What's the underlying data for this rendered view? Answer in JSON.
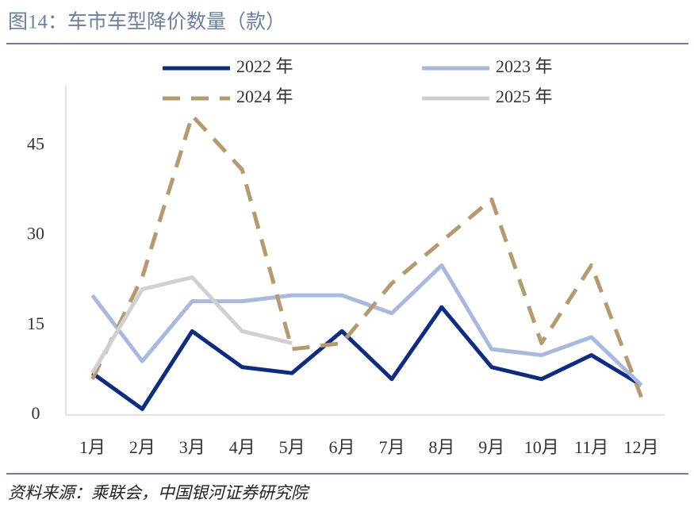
{
  "chart_data": {
    "type": "line",
    "title": "图14：车市车型降价数量（款）",
    "source": "资料来源：乘联会，中国银河证券研究院",
    "categories": [
      "1月",
      "2月",
      "3月",
      "4月",
      "5月",
      "6月",
      "7月",
      "8月",
      "9月",
      "10月",
      "11月",
      "12月"
    ],
    "series": [
      {
        "name": "2022 年",
        "color": "#0b2c82",
        "dash": false,
        "values": [
          7,
          1,
          14,
          8,
          7,
          14,
          6,
          18,
          8,
          6,
          10,
          5
        ]
      },
      {
        "name": "2023 年",
        "color": "#a7b9e0",
        "dash": false,
        "values": [
          20,
          9,
          19,
          19,
          20,
          20,
          17,
          25,
          11,
          10,
          13,
          5
        ]
      },
      {
        "name": "2024 年",
        "color": "#b59a6e",
        "dash": true,
        "values": [
          6,
          23,
          50,
          41,
          11,
          12,
          22,
          29,
          36,
          12,
          25,
          3
        ]
      },
      {
        "name": "2025 年",
        "color": "#d0d0d0",
        "dash": false,
        "values": [
          7,
          21,
          23,
          14,
          12,
          null,
          null,
          null,
          null,
          null,
          null,
          null
        ]
      }
    ],
    "ylim": [
      0,
      55
    ],
    "yticks": [
      0,
      15,
      30,
      45
    ],
    "grid": false,
    "legend": "top"
  }
}
